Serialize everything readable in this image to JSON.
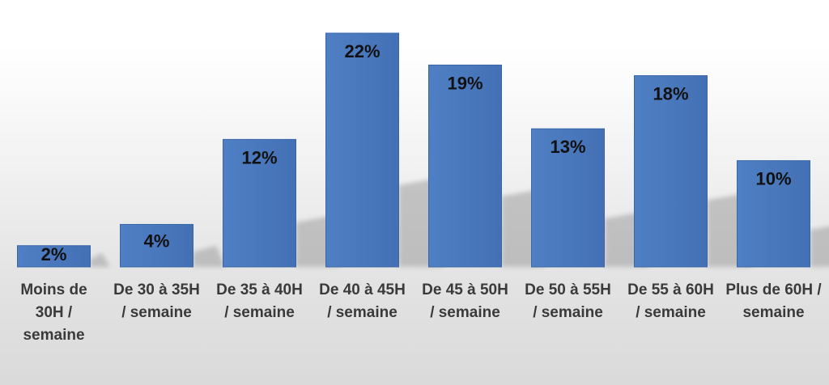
{
  "chart_data": {
    "type": "bar",
    "title": "",
    "xlabel": "",
    "ylabel": "",
    "ylim": [
      0,
      22
    ],
    "grid": false,
    "legend": false,
    "bar_color": "#4A78BD",
    "bar_edge_color": "#3A66A8",
    "shadow_color": "#9e9e9e",
    "categories": [
      "Moins de 30H / semaine",
      "De 30 à 35H / semaine",
      "De 35 à 40H / semaine",
      "De 40 à 45H / semaine",
      "De 45 à 50H / semaine",
      "De 50 à 55H / semaine",
      "De 55 à 60H / semaine",
      "Plus de 60H / semaine"
    ],
    "category_lines": [
      [
        "Moins de",
        "30H /",
        "semaine"
      ],
      [
        "De 30 à 35H",
        "/ semaine"
      ],
      [
        "De 35 à 40H",
        "/ semaine"
      ],
      [
        "De 40 à 45H",
        "/ semaine"
      ],
      [
        "De 45 à 50H",
        "/ semaine"
      ],
      [
        "De 50 à 55H",
        "/ semaine"
      ],
      [
        "De 55 à 60H",
        "/ semaine"
      ],
      [
        "Plus de 60H /",
        "semaine"
      ]
    ],
    "values": [
      2,
      4,
      12,
      22,
      19,
      13,
      18,
      10
    ],
    "data_labels": [
      "2%",
      "4%",
      "12%",
      "22%",
      "19%",
      "13%",
      "18%",
      "10%"
    ]
  }
}
